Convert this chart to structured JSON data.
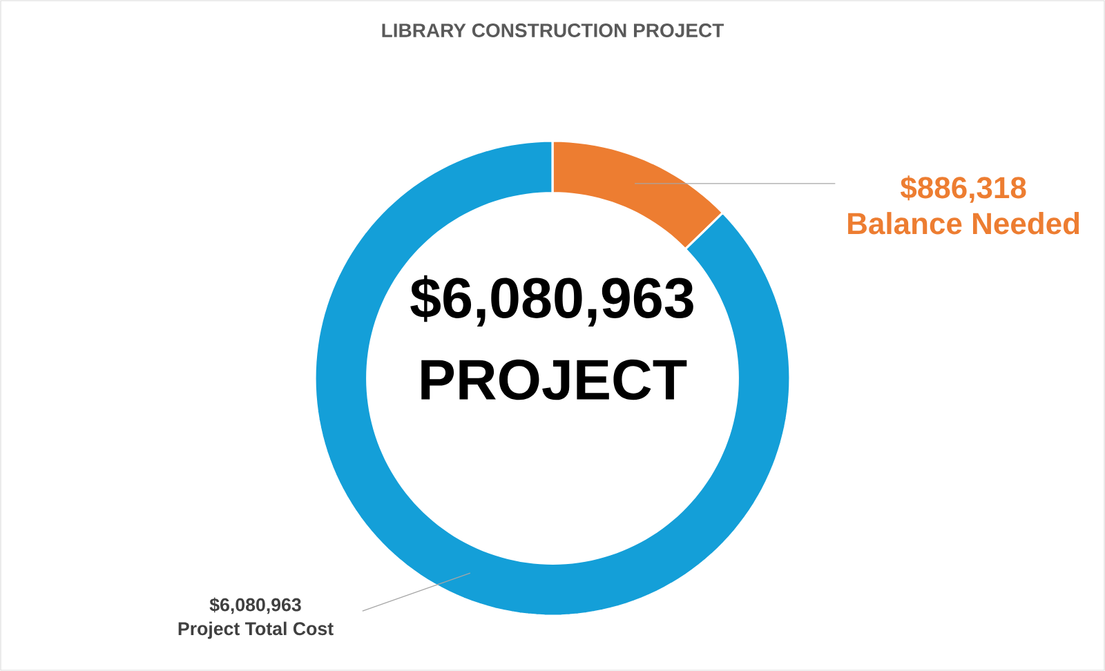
{
  "chart_data": {
    "type": "donut",
    "title": "LIBRARY CONSTRUCTION PROJECT",
    "categories": [
      "Balance Needed",
      "Project Total Cost"
    ],
    "values": [
      886318,
      6080963
    ],
    "value_labels": [
      "$886,318",
      "$6,080,963"
    ],
    "colors": [
      "#ed7d31",
      "#149fd8"
    ],
    "annotations": [
      "$6,080,963",
      "PROJECT"
    ]
  }
}
